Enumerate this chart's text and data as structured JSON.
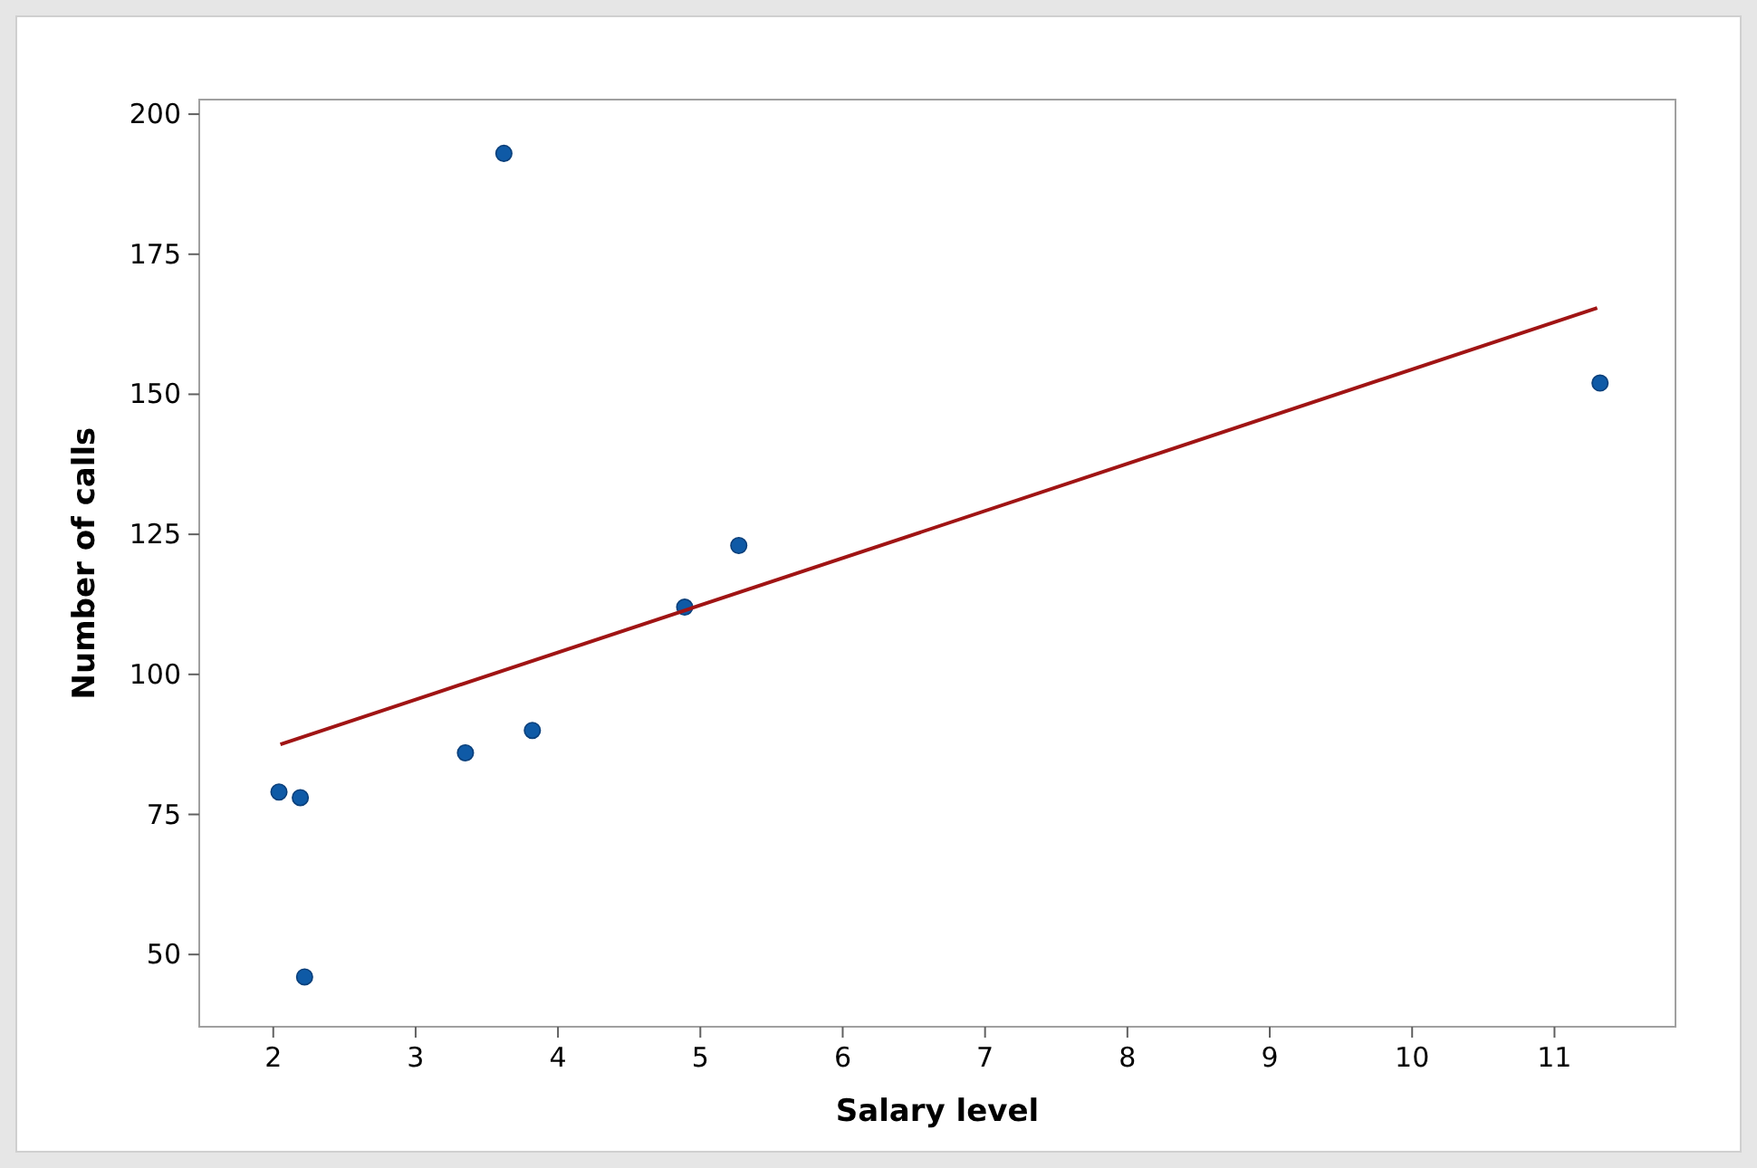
{
  "chart_data": {
    "type": "scatter",
    "xlabel": "Salary level",
    "ylabel": "Number of calls",
    "xlim": [
      1.48,
      11.85
    ],
    "xticks": [
      2,
      3,
      4,
      5,
      6,
      7,
      8,
      9,
      10,
      11
    ],
    "ylim": [
      37.1,
      202.6
    ],
    "yticks": [
      50,
      75,
      100,
      125,
      150,
      175,
      200
    ],
    "grid": false,
    "marker": "circle",
    "series": [
      {
        "color": "#0f5aa6",
        "x": [
          2.04,
          2.19,
          2.22,
          3.35,
          3.62,
          3.82,
          4.89,
          5.27,
          11.32
        ],
        "values": [
          79,
          78,
          46,
          86,
          193,
          90,
          112,
          123,
          152
        ]
      },
      {
        "type": "line",
        "color": "#a01414",
        "line_style": "solid",
        "marker": "none",
        "x": [
          2.05,
          11.3
        ],
        "values": [
          87.5,
          165.4
        ]
      }
    ]
  }
}
